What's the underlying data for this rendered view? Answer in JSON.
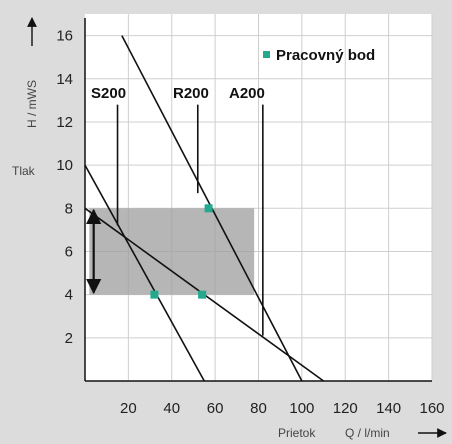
{
  "colors": {
    "background": "#dcdcdc",
    "plot_background": "#ffffff",
    "grid": "#cfcfcf",
    "line": "#111111",
    "highlight": "#9e9e9e",
    "marker": "#22a98e"
  },
  "chart_data": {
    "type": "line",
    "xlabel_left": "Prietok",
    "xlabel_right": "Q / l/min",
    "ylabel": "H / mWS",
    "side_label": "Tlak",
    "xlim": [
      0,
      160
    ],
    "ylim": [
      0,
      17
    ],
    "x_ticks": [
      "20",
      "40",
      "60",
      "80",
      "100",
      "120",
      "140",
      "160"
    ],
    "y_ticks": [
      "2",
      "4",
      "6",
      "8",
      "10",
      "12",
      "14",
      "16"
    ],
    "grid": true,
    "legend": {
      "label": "Pracovný bod",
      "placement": "top-right",
      "marker": "square"
    },
    "curves": [
      {
        "points": [
          [
            0,
            10
          ],
          [
            55,
            0
          ]
        ]
      },
      {
        "points": [
          [
            0,
            8
          ],
          [
            110,
            0
          ]
        ]
      },
      {
        "points": [
          [
            17,
            16
          ],
          [
            100,
            0
          ]
        ]
      }
    ],
    "pump_labels": [
      {
        "label": "S200",
        "x": 15,
        "y_top": 12.8,
        "y_bottom": 7.2
      },
      {
        "label": "R200",
        "x": 52,
        "y_top": 12.8,
        "y_bottom": 8.7
      },
      {
        "label": "A200",
        "x": 82,
        "y_top": 12.8,
        "y_bottom": 2.1
      }
    ],
    "highlight_region": {
      "x": [
        2,
        78
      ],
      "y": [
        4,
        8
      ]
    },
    "range_arrow": {
      "x": 4,
      "y": [
        4,
        8
      ]
    },
    "operating_points": [
      {
        "x": 32,
        "y": 4
      },
      {
        "x": 54,
        "y": 4
      },
      {
        "x": 57,
        "y": 8
      }
    ]
  }
}
